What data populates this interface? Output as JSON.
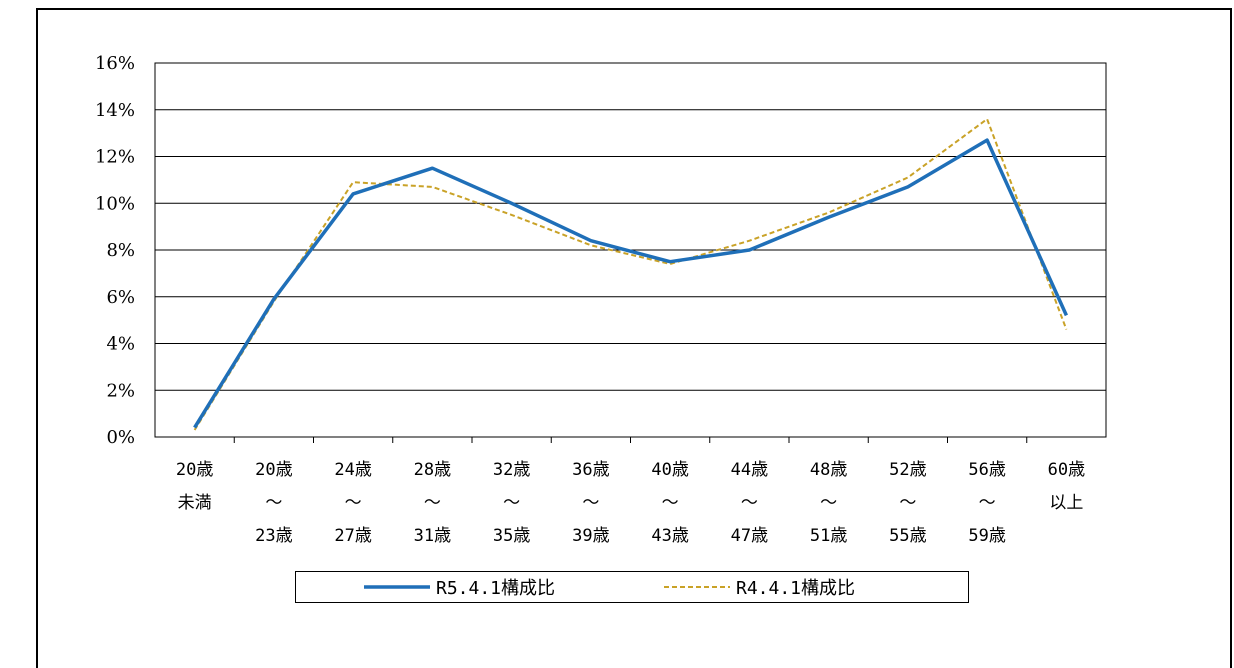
{
  "chart_data": {
    "type": "line",
    "title": "",
    "xlabel": "",
    "ylabel": "",
    "ylim": [
      0,
      16
    ],
    "y_ticks": [
      "0%",
      "2%",
      "4%",
      "6%",
      "8%",
      "10%",
      "12%",
      "14%",
      "16%"
    ],
    "grid": "horizontal",
    "legend_position": "bottom",
    "categories": [
      [
        "20歳",
        "未満"
      ],
      [
        "20歳",
        "～",
        "23歳"
      ],
      [
        "24歳",
        "～",
        "27歳"
      ],
      [
        "28歳",
        "～",
        "31歳"
      ],
      [
        "32歳",
        "～",
        "35歳"
      ],
      [
        "36歳",
        "～",
        "39歳"
      ],
      [
        "40歳",
        "～",
        "43歳"
      ],
      [
        "44歳",
        "～",
        "47歳"
      ],
      [
        "48歳",
        "～",
        "51歳"
      ],
      [
        "52歳",
        "～",
        "55歳"
      ],
      [
        "56歳",
        "～",
        "59歳"
      ],
      [
        "60歳",
        "以上"
      ]
    ],
    "series": [
      {
        "name": "R5.4.1構成比",
        "color": "#1f6fb8",
        "style": "solid",
        "values": [
          0.4,
          5.9,
          10.4,
          11.5,
          10.0,
          8.4,
          7.5,
          8.0,
          9.4,
          10.7,
          12.7,
          5.2
        ]
      },
      {
        "name": "R4.4.1構成比",
        "color": "#c9a227",
        "style": "dashed",
        "values": [
          0.3,
          5.8,
          10.9,
          10.7,
          9.5,
          8.2,
          7.4,
          8.4,
          9.6,
          11.1,
          13.6,
          4.6
        ]
      }
    ]
  }
}
